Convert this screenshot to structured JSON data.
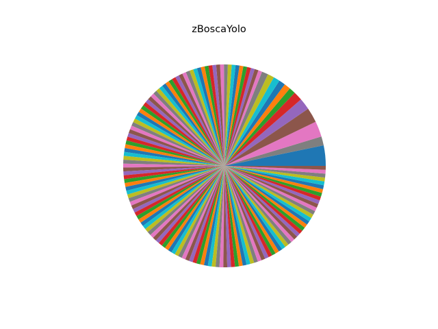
{
  "chart_data": {
    "type": "pie",
    "title": "zBoscaYolo",
    "start_angle_deg": 0,
    "direction": "counterclockwise",
    "legend": "none",
    "values": [
      11.1,
      4.9,
      8.5,
      8.1,
      6.3,
      4.9,
      3.5,
      3.5,
      3.5,
      3.5,
      3.5,
      3.5,
      2.1,
      2.1,
      2.1,
      2.1,
      2.1,
      2.1,
      2.1,
      2.1,
      2.1,
      2.1,
      2.1,
      2.1,
      2.1,
      2.1,
      2.1,
      2.1,
      2.1,
      2.1,
      2.1,
      2.1,
      2.1,
      2.1,
      2.1,
      2.1,
      2.1,
      2.1,
      2.1,
      2.1,
      2.1,
      2.1,
      2.1,
      2.1,
      2.1,
      2.1,
      2.1,
      2.1,
      2.1,
      2.1,
      2.1,
      2.1,
      2.1,
      2.1,
      2.1,
      2.1,
      2.1,
      2.1,
      2.1,
      2.1,
      2.1,
      2.1,
      2.1,
      2.1,
      2.1,
      2.1,
      2.1,
      2.1,
      2.1,
      2.1,
      2.1,
      2.1,
      2.1,
      2.1,
      2.1,
      2.1,
      2.1,
      2.1,
      2.1,
      2.1,
      2.1,
      2.1,
      2.1,
      2.1,
      2.1,
      2.1,
      2.1,
      2.1,
      2.1,
      2.1,
      2.1,
      2.1,
      2.1,
      2.1,
      2.1,
      2.1,
      2.1,
      2.1,
      2.1,
      2.1,
      2.1,
      2.1,
      2.1,
      2.1,
      2.1,
      2.1,
      2.1,
      2.1,
      2.1,
      2.1,
      2.1,
      2.1,
      2.1,
      2.1,
      2.1,
      2.1,
      2.1,
      2.1,
      2.1,
      2.1,
      2.1,
      2.1,
      2.1,
      2.1,
      2.1,
      2.1,
      2.1,
      2.1,
      2.1,
      2.1,
      2.1,
      2.1,
      2.1,
      2.1,
      2.1,
      2.1,
      2.1,
      2.1,
      2.1,
      2.1,
      2.1,
      2.1,
      2.1,
      2.1
    ],
    "colors": [
      "#1f77b4",
      "#7f7f7f",
      "#e377c2",
      "#8c564b",
      "#9467bd",
      "#d62728",
      "#2ca02c",
      "#ff7f0e",
      "#1f77b4",
      "#17becf",
      "#bcbd22",
      "#7f7f7f",
      "#e377c2",
      "#8c564b",
      "#9467bd",
      "#d62728",
      "#2ca02c",
      "#ff7f0e",
      "#1f77b4",
      "#17becf",
      "#bcbd22",
      "#7f7f7f",
      "#e377c2",
      "#8c564b",
      "#9467bd",
      "#d62728",
      "#2ca02c",
      "#ff7f0e",
      "#1f77b4",
      "#17becf",
      "#bcbd22",
      "#7f7f7f",
      "#e377c2",
      "#8c564b",
      "#9467bd",
      "#d62728",
      "#2ca02c",
      "#ff7f0e",
      "#1f77b4",
      "#17becf",
      "#bcbd22",
      "#7f7f7f",
      "#e377c2",
      "#8c564b",
      "#9467bd",
      "#d62728",
      "#2ca02c",
      "#ff7f0e",
      "#1f77b4",
      "#17becf",
      "#bcbd22",
      "#7f7f7f",
      "#e377c2",
      "#8c564b",
      "#9467bd",
      "#d62728",
      "#2ca02c",
      "#ff7f0e",
      "#1f77b4",
      "#17becf",
      "#bcbd22",
      "#7f7f7f",
      "#e377c2",
      "#8c564b",
      "#9467bd",
      "#d62728",
      "#2ca02c",
      "#ff7f0e",
      "#1f77b4",
      "#17becf",
      "#bcbd22",
      "#7f7f7f",
      "#e377c2",
      "#8c564b",
      "#9467bd",
      "#d62728",
      "#2ca02c",
      "#ff7f0e",
      "#1f77b4",
      "#17becf",
      "#bcbd22",
      "#7f7f7f",
      "#e377c2",
      "#8c564b",
      "#9467bd",
      "#d62728",
      "#2ca02c",
      "#ff7f0e",
      "#1f77b4",
      "#17becf",
      "#bcbd22",
      "#7f7f7f",
      "#e377c2",
      "#8c564b",
      "#9467bd",
      "#d62728",
      "#2ca02c",
      "#ff7f0e",
      "#1f77b4",
      "#17becf",
      "#bcbd22",
      "#7f7f7f",
      "#e377c2",
      "#8c564b",
      "#9467bd",
      "#d62728",
      "#2ca02c",
      "#ff7f0e",
      "#1f77b4",
      "#17becf",
      "#bcbd22",
      "#7f7f7f",
      "#e377c2",
      "#8c564b",
      "#9467bd",
      "#d62728",
      "#2ca02c",
      "#ff7f0e",
      "#1f77b4",
      "#17becf",
      "#bcbd22",
      "#7f7f7f",
      "#e377c2",
      "#8c564b",
      "#9467bd",
      "#d62728",
      "#2ca02c",
      "#ff7f0e",
      "#1f77b4",
      "#17becf",
      "#bcbd22",
      "#7f7f7f",
      "#e377c2",
      "#8c564b",
      "#9467bd",
      "#d62728",
      "#2ca02c",
      "#ff7f0e",
      "#1f77b4",
      "#17becf",
      "#bcbd22",
      "#7f7f7f",
      "#e377c2",
      "#8c564b"
    ]
  }
}
